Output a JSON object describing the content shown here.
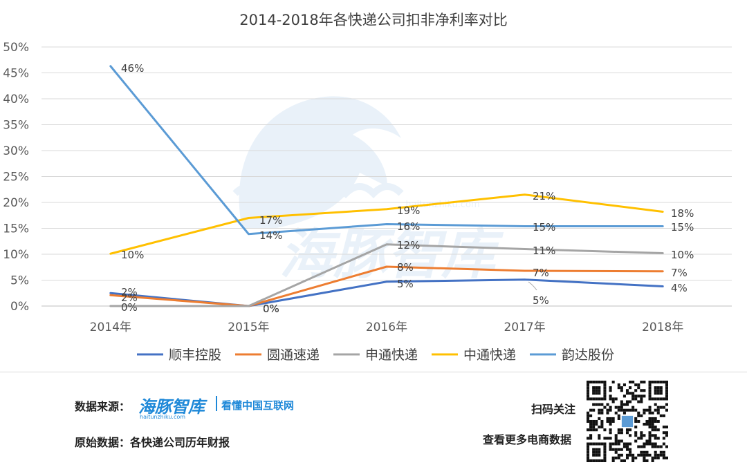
{
  "chart_data": {
    "type": "line",
    "title": "2014-2018年各快递公司扣非净利率对比",
    "categories": [
      "2014年",
      "2015年",
      "2016年",
      "2017年",
      "2018年"
    ],
    "ylim": [
      0,
      50
    ],
    "yticks": [
      "0%",
      "5%",
      "10%",
      "15%",
      "20%",
      "25%",
      "30%",
      "35%",
      "40%",
      "45%",
      "50%"
    ],
    "grid": true,
    "legend_position": "bottom",
    "series": [
      {
        "name": "顺丰控股",
        "color": "#4472c4",
        "values": [
          2.5,
          0,
          4.7,
          5.1,
          3.8
        ],
        "labels": [
          "2%",
          "0%",
          "5%",
          "5%",
          "4%"
        ]
      },
      {
        "name": "圆通速递",
        "color": "#ed7d31",
        "values": [
          2.1,
          0,
          7.6,
          6.8,
          6.7
        ],
        "labels": [
          "2%",
          "0%",
          "8%",
          "7%",
          "7%"
        ]
      },
      {
        "name": "申通快递",
        "color": "#a5a5a5",
        "values": [
          0,
          0,
          11.9,
          11.0,
          10.2
        ],
        "labels": [
          "0%",
          "0%",
          "12%",
          "11%",
          "10%"
        ]
      },
      {
        "name": "中通快递",
        "color": "#ffc000",
        "values": [
          10.1,
          17.0,
          18.7,
          21.5,
          18.2
        ],
        "labels": [
          "10%",
          "17%",
          "19%",
          "21%",
          "18%"
        ]
      },
      {
        "name": "韵达股份",
        "color": "#5b9bd5",
        "values": [
          46.3,
          13.9,
          15.8,
          15.4,
          15.4
        ],
        "labels": [
          "46%",
          "14%",
          "16%",
          "15%",
          "15%"
        ]
      }
    ]
  },
  "footer": {
    "source_label": "数据来源：",
    "brand_name": "海豚智库",
    "brand_slogan": "看懂中国互联网",
    "brand_url": "haitunzhiku.com",
    "raw_data_label": "原始数据：各快递公司历年财报",
    "scan_label": "扫码关注",
    "more_label": "查看更多电商数据"
  },
  "watermark": {
    "text": "海豚智库",
    "url": "haitunzhiku.com",
    "color": "#5b9bd5"
  }
}
